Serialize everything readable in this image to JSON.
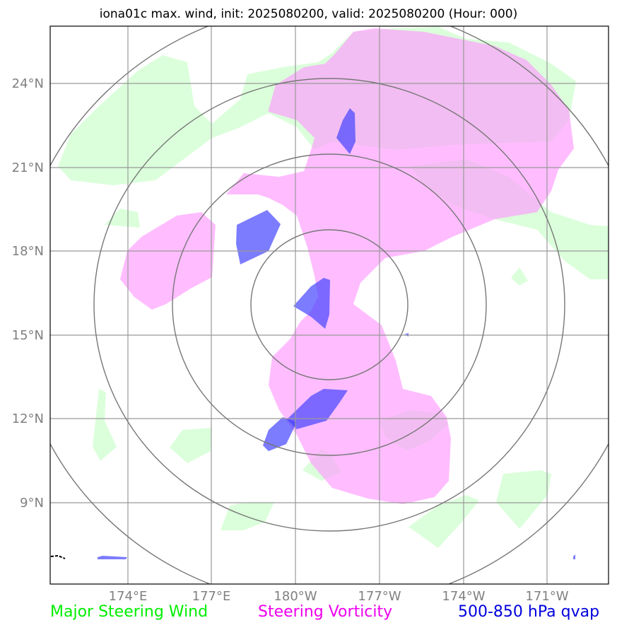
{
  "title": "iona01c max. wind, init: 2025080200, valid: 2025080200 (Hour: 000)",
  "axes": {
    "lat_labels": [
      "24°N",
      "21°N",
      "18°N",
      "15°N",
      "12°N",
      "9°N"
    ],
    "lon_labels": [
      "174°E",
      "177°E",
      "180°W",
      "177°W",
      "174°W",
      "171°W"
    ]
  },
  "legend": {
    "major_steering_wind": "Major Steering Wind",
    "steering_vorticity": "Steering Vorticity",
    "qvap": "500-850 hPa qvap"
  },
  "colors": {
    "wind": "#ccffcc",
    "vorticity": "#ffaaff",
    "qvap": "#5555ff",
    "grid": "#999999",
    "rings": "#777777"
  }
}
